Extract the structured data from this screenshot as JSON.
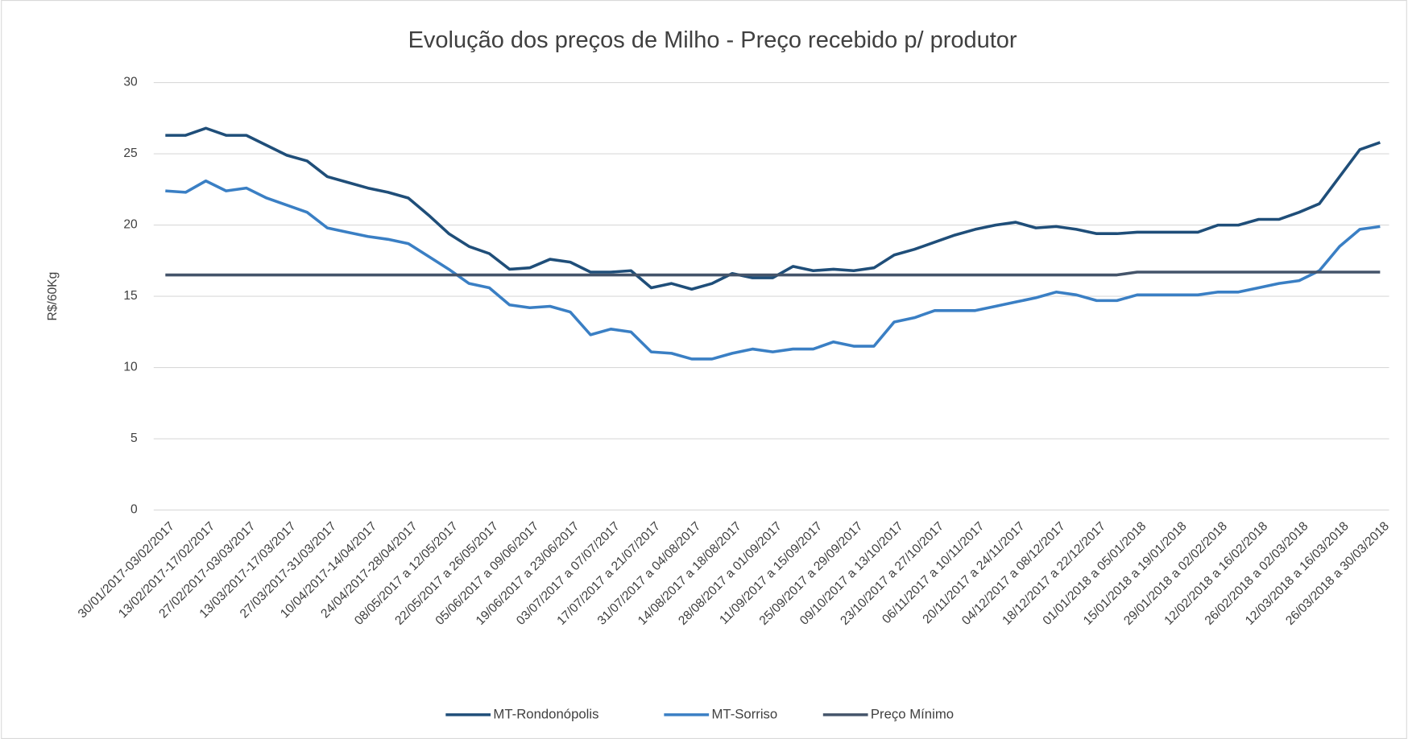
{
  "chart_data": {
    "type": "line",
    "title": "Evolução dos preços de Milho - Preço recebido p/ produtor",
    "y_label": "R$/60Kg",
    "categories": [
      "30/01/2017-03/02/2017",
      null,
      "13/02/2017-17/02/2017",
      null,
      "27/02/2017-03/03/2017",
      null,
      "13/03/2017-17/03/2017",
      null,
      "27/03/2017-31/03/2017",
      null,
      "10/04/2017-14/04/2017",
      null,
      "24/04/2017-28/04/2017",
      null,
      "08/05/2017 a 12/05/2017",
      null,
      "22/05/2017 a 26/05/2017",
      null,
      "05/06/2017 a 09/06/2017",
      null,
      "19/06/2017 a 23/06/2017",
      null,
      "03/07/2017 a 07/07/2017",
      null,
      "17/07/2017 a 21/07/2017",
      null,
      "31/07/2017 a 04/08/2017",
      null,
      "14/08/2017 a 18/08/2017",
      null,
      "28/08/2017 a 01/09/2017",
      null,
      "11/09/2017 a 15/09/2017",
      null,
      "25/09/2017 a 29/09/2017",
      null,
      "09/10/2017 a 13/10/2017",
      null,
      "23/10/2017 a 27/10/2017",
      null,
      "06/11/2017 a 10/11/2017",
      null,
      "20/11/2017 a 24/11/2017",
      null,
      "04/12/2017 a 08/12/2017",
      null,
      "18/12/2017 a 22/12/2017",
      null,
      "01/01/2018 a 05/01/2018",
      null,
      "15/01/2018 a 19/01/2018",
      null,
      "29/01/2018 a 02/02/2018",
      null,
      "12/02/2018 a 16/02/2018",
      null,
      "26/02/2018 a 02/03/2018",
      null,
      "12/03/2018 a 16/03/2018",
      null,
      "26/03/2018 a 30/03/2018"
    ],
    "series": [
      {
        "name": "MT-Rondonópolis",
        "color": "#1f4e79",
        "values": [
          26.3,
          26.3,
          26.8,
          26.3,
          26.3,
          25.6,
          24.9,
          24.5,
          23.4,
          23.0,
          22.6,
          22.3,
          21.9,
          20.7,
          19.4,
          18.5,
          18.0,
          16.9,
          17.0,
          17.6,
          17.4,
          16.7,
          16.7,
          16.8,
          15.6,
          15.9,
          15.5,
          15.9,
          16.6,
          16.3,
          16.3,
          17.1,
          16.8,
          16.9,
          16.8,
          17.0,
          17.9,
          18.3,
          18.8,
          19.3,
          19.7,
          20.0,
          20.2,
          19.8,
          19.9,
          19.7,
          19.4,
          19.4,
          19.5,
          19.5,
          19.5,
          19.5,
          20.0,
          20.0,
          20.4,
          20.4,
          20.9,
          21.5,
          23.4,
          25.3,
          25.8
        ]
      },
      {
        "name": "MT-Sorriso",
        "color": "#3a7fc4",
        "values": [
          22.4,
          22.3,
          23.1,
          22.4,
          22.6,
          21.9,
          21.4,
          20.9,
          19.8,
          19.5,
          19.2,
          19.0,
          18.7,
          17.8,
          16.9,
          15.9,
          15.6,
          14.4,
          14.2,
          14.3,
          13.9,
          12.3,
          12.7,
          12.5,
          11.1,
          11.0,
          10.6,
          10.6,
          11.0,
          11.3,
          11.1,
          11.3,
          11.3,
          11.8,
          11.5,
          11.5,
          13.2,
          13.5,
          14.0,
          14.0,
          14.0,
          14.3,
          14.6,
          14.9,
          15.3,
          15.1,
          14.7,
          14.7,
          15.1,
          15.1,
          15.1,
          15.1,
          15.3,
          15.3,
          15.6,
          15.9,
          16.1,
          16.8,
          18.5,
          19.7,
          19.9
        ]
      },
      {
        "name": "Preço Mínimo",
        "color": "#44546a",
        "values": [
          16.5,
          16.5,
          16.5,
          16.5,
          16.5,
          16.5,
          16.5,
          16.5,
          16.5,
          16.5,
          16.5,
          16.5,
          16.5,
          16.5,
          16.5,
          16.5,
          16.5,
          16.5,
          16.5,
          16.5,
          16.5,
          16.5,
          16.5,
          16.5,
          16.5,
          16.5,
          16.5,
          16.5,
          16.5,
          16.5,
          16.5,
          16.5,
          16.5,
          16.5,
          16.5,
          16.5,
          16.5,
          16.5,
          16.5,
          16.5,
          16.5,
          16.5,
          16.5,
          16.5,
          16.5,
          16.5,
          16.5,
          16.5,
          16.7,
          16.7,
          16.7,
          16.7,
          16.7,
          16.7,
          16.7,
          16.7,
          16.7,
          16.7,
          16.7,
          16.7,
          16.7
        ]
      }
    ],
    "ylim": [
      0,
      30
    ],
    "yticks": [
      0,
      5,
      10,
      15,
      20,
      25,
      30
    ],
    "grid": true,
    "legend": "bottom"
  }
}
